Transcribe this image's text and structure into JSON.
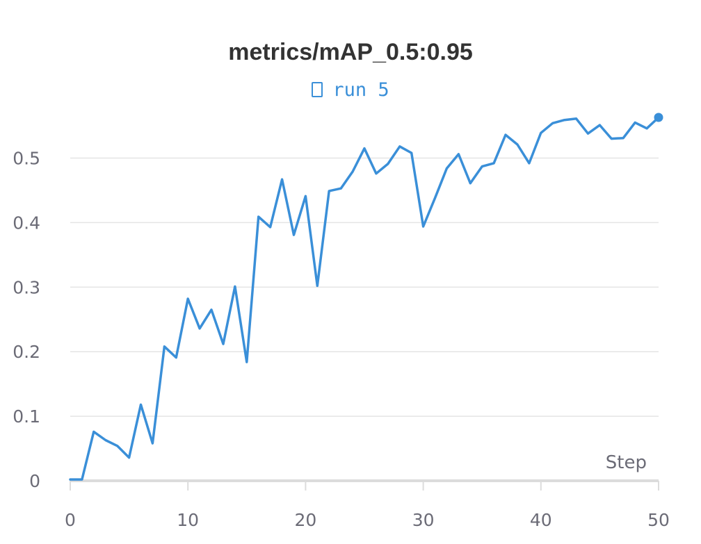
{
  "chart_data": {
    "type": "line",
    "title": "metrics/mAP_0.5:0.95",
    "xlabel": "Step",
    "ylabel": "",
    "xlim": [
      0,
      50
    ],
    "ylim": [
      0,
      0.58
    ],
    "x_ticks": [
      "0",
      "10",
      "20",
      "30",
      "40",
      "50"
    ],
    "y_ticks": [
      "0",
      "0.1",
      "0.2",
      "0.3",
      "0.4",
      "0.5"
    ],
    "grid": "horizontal",
    "legend": "top-center",
    "series": [
      {
        "name": "run 5",
        "color": "#3a8fd8",
        "x": [
          0,
          1,
          2,
          3,
          4,
          5,
          6,
          7,
          8,
          9,
          10,
          11,
          12,
          13,
          14,
          15,
          16,
          17,
          18,
          19,
          20,
          21,
          22,
          23,
          24,
          25,
          26,
          27,
          28,
          29,
          30,
          31,
          32,
          33,
          34,
          35,
          36,
          37,
          38,
          39,
          40,
          41,
          42,
          43,
          44,
          45,
          46,
          47,
          48,
          49,
          50
        ],
        "y": [
          0.002,
          0.002,
          0.076,
          0.063,
          0.054,
          0.036,
          0.118,
          0.058,
          0.208,
          0.191,
          0.282,
          0.236,
          0.265,
          0.212,
          0.301,
          0.184,
          0.409,
          0.393,
          0.467,
          0.381,
          0.441,
          0.302,
          0.449,
          0.453,
          0.479,
          0.515,
          0.476,
          0.491,
          0.518,
          0.508,
          0.394,
          0.438,
          0.484,
          0.506,
          0.461,
          0.487,
          0.492,
          0.536,
          0.521,
          0.492,
          0.539,
          0.554,
          0.559,
          0.561,
          0.538,
          0.551,
          0.53,
          0.531,
          0.555,
          0.546,
          0.563
        ]
      }
    ]
  }
}
